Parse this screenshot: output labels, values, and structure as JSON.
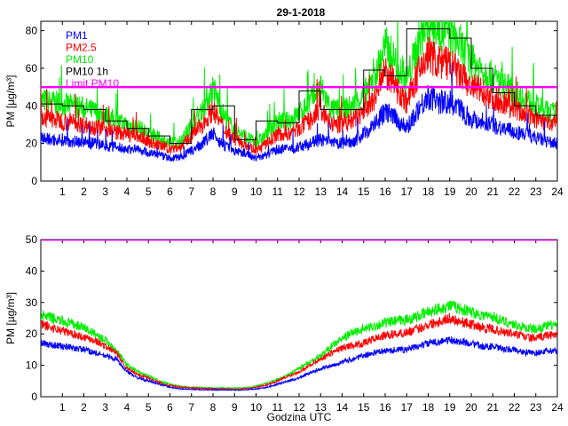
{
  "chart_data": [
    {
      "type": "line",
      "title": "29-1-2018",
      "ylabel": "PM [µg/m³]",
      "xlabel": "",
      "xlim": [
        0,
        24
      ],
      "ylim": [
        0,
        85
      ],
      "xticks": [
        "1",
        "2",
        "3",
        "4",
        "5",
        "6",
        "7",
        "8",
        "9",
        "10",
        "11",
        "12",
        "13",
        "14",
        "15",
        "16",
        "17",
        "18",
        "19",
        "20",
        "21",
        "22",
        "23",
        "24"
      ],
      "yticks": [
        "0",
        "20",
        "40",
        "60",
        "80"
      ],
      "legend_position": "top-left",
      "colors": {
        "PM1": "#0000ff",
        "PM2.5": "#ff0000",
        "PM10": "#00ee00",
        "PM10 1h": "#000000",
        "Limit PM10": "#ff00ff"
      },
      "series": [
        {
          "name": "PM1",
          "x": [
            0,
            0.5,
            1,
            1.5,
            2,
            2.5,
            3,
            3.5,
            4,
            4.5,
            5,
            5.5,
            6,
            6.5,
            7,
            7.5,
            8,
            8.5,
            9,
            9.5,
            10,
            10.5,
            11,
            11.5,
            12,
            12.5,
            13,
            13.5,
            14,
            14.5,
            15,
            15.5,
            16,
            16.5,
            17,
            17.5,
            18,
            18.5,
            19,
            19.5,
            20,
            20.5,
            21,
            21.5,
            22,
            22.5,
            23,
            23.5,
            24
          ],
          "y": [
            23,
            22,
            22,
            21,
            21,
            20,
            19,
            18,
            17,
            17,
            15,
            14,
            12,
            13,
            16,
            20,
            25,
            19,
            16,
            15,
            12,
            14,
            17,
            17,
            18,
            20,
            22,
            20,
            20,
            21,
            25,
            30,
            37,
            33,
            28,
            38,
            45,
            42,
            42,
            38,
            33,
            32,
            30,
            28,
            26,
            25,
            23,
            21,
            20
          ]
        },
        {
          "name": "PM2.5",
          "x": [
            0,
            0.5,
            1,
            1.5,
            2,
            2.5,
            3,
            3.5,
            4,
            4.5,
            5,
            5.5,
            6,
            6.5,
            7,
            7.5,
            8,
            8.5,
            9,
            9.5,
            10,
            10.5,
            11,
            11.5,
            12,
            12.5,
            13,
            13.5,
            14,
            14.5,
            15,
            15.5,
            16,
            16.5,
            17,
            17.5,
            18,
            18.5,
            19,
            19.5,
            20,
            20.5,
            21,
            21.5,
            22,
            22.5,
            23,
            23.5,
            24
          ],
          "y": [
            34,
            33,
            32,
            31,
            30,
            29,
            28,
            26,
            25,
            24,
            21,
            19,
            17,
            18,
            24,
            30,
            38,
            28,
            22,
            20,
            16,
            20,
            25,
            25,
            28,
            32,
            38,
            30,
            30,
            32,
            37,
            43,
            58,
            50,
            42,
            56,
            68,
            63,
            62,
            56,
            50,
            48,
            44,
            42,
            38,
            36,
            33,
            31,
            30
          ]
        },
        {
          "name": "PM10",
          "x": [
            0,
            0.5,
            1,
            1.5,
            2,
            2.5,
            3,
            3.5,
            4,
            4.5,
            5,
            5.5,
            6,
            6.5,
            7,
            7.5,
            8,
            8.5,
            9,
            9.5,
            10,
            10.5,
            11,
            11.5,
            12,
            12.5,
            13,
            13.5,
            14,
            14.5,
            15,
            15.5,
            16,
            16.5,
            17,
            17.5,
            18,
            18.5,
            19,
            19.5,
            20,
            20.5,
            21,
            21.5,
            22,
            22.5,
            23,
            23.5,
            24
          ],
          "y": [
            43,
            42,
            41,
            40,
            39,
            37,
            35,
            32,
            30,
            29,
            25,
            23,
            20,
            21,
            30,
            38,
            50,
            35,
            27,
            24,
            20,
            25,
            32,
            32,
            36,
            42,
            50,
            38,
            38,
            40,
            46,
            55,
            72,
            63,
            53,
            72,
            85,
            80,
            79,
            72,
            63,
            60,
            55,
            52,
            47,
            44,
            40,
            37,
            36
          ]
        },
        {
          "name": "PM10 1h",
          "x": [
            0,
            1,
            2,
            3,
            4,
            5,
            6,
            7,
            8,
            9,
            10,
            11,
            12,
            13,
            14,
            15,
            16,
            17,
            18,
            19,
            20,
            21,
            22,
            23,
            24
          ],
          "y": [
            41,
            40,
            38,
            32,
            28,
            24,
            20,
            38,
            40,
            22,
            32,
            31,
            48,
            38,
            38,
            59,
            56,
            81,
            81,
            76,
            60,
            47,
            40,
            35,
            35
          ]
        },
        {
          "name": "Limit PM10",
          "x": [
            0,
            24
          ],
          "y": [
            50,
            50
          ]
        }
      ]
    },
    {
      "type": "line",
      "title": "",
      "ylabel": "PM [µg/m³]",
      "xlabel": "Godzina UTC",
      "xlim": [
        0,
        24
      ],
      "ylim": [
        0,
        50
      ],
      "xticks": [
        "1",
        "2",
        "3",
        "4",
        "5",
        "6",
        "7",
        "8",
        "9",
        "10",
        "11",
        "12",
        "13",
        "14",
        "15",
        "16",
        "17",
        "18",
        "19",
        "20",
        "21",
        "22",
        "23",
        "24"
      ],
      "yticks": [
        "0",
        "10",
        "20",
        "30",
        "40",
        "50"
      ],
      "colors": {
        "PM1": "#0000ff",
        "PM2.5": "#ff0000",
        "PM10": "#00ee00",
        "Limit PM10": "#ff00ff"
      },
      "series": [
        {
          "name": "PM1",
          "x": [
            0,
            0.5,
            1,
            1.5,
            2,
            2.5,
            3,
            3.5,
            4,
            4.5,
            5,
            5.5,
            6,
            6.5,
            7,
            7.5,
            8,
            8.5,
            9,
            9.5,
            10,
            10.5,
            11,
            11.5,
            12,
            12.5,
            13,
            13.5,
            14,
            14.5,
            15,
            15.5,
            16,
            16.5,
            17,
            17.5,
            18,
            18.5,
            19,
            19.5,
            20,
            20.5,
            21,
            21.5,
            22,
            22.5,
            23,
            23.5,
            24
          ],
          "y": [
            17,
            16.5,
            16,
            15.5,
            15,
            14,
            13,
            12,
            8,
            6,
            5,
            4,
            3,
            2.5,
            2.3,
            2.2,
            2.2,
            2.2,
            2.1,
            2.2,
            2.5,
            3,
            4,
            5,
            6,
            7.5,
            9,
            10,
            11,
            12,
            13,
            14,
            14.5,
            15,
            15,
            16,
            17,
            17.5,
            18,
            17.5,
            17,
            16,
            16,
            15,
            15,
            14,
            14,
            14.5,
            14.5
          ]
        },
        {
          "name": "PM2.5",
          "x": [
            0,
            0.5,
            1,
            1.5,
            2,
            2.5,
            3,
            3.5,
            4,
            4.5,
            5,
            5.5,
            6,
            6.5,
            7,
            7.5,
            8,
            8.5,
            9,
            9.5,
            10,
            10.5,
            11,
            11.5,
            12,
            12.5,
            13,
            13.5,
            14,
            14.5,
            15,
            15.5,
            16,
            16.5,
            17,
            17.5,
            18,
            18.5,
            19,
            19.5,
            20,
            20.5,
            21,
            21.5,
            22,
            22.5,
            23,
            23.5,
            24
          ],
          "y": [
            23,
            22,
            21,
            20,
            19,
            18,
            16,
            14,
            9,
            7,
            6,
            4.5,
            3.5,
            3,
            2.8,
            2.6,
            2.5,
            2.5,
            2.4,
            2.6,
            3,
            3.8,
            5,
            6.5,
            8,
            10,
            12,
            14,
            15.5,
            16.5,
            17,
            18.5,
            19.5,
            20,
            20.5,
            21.5,
            23,
            24,
            25,
            24,
            23,
            22,
            21.5,
            20.5,
            20,
            19,
            18.5,
            19.5,
            20
          ]
        },
        {
          "name": "PM10",
          "x": [
            0,
            0.5,
            1,
            1.5,
            2,
            2.5,
            3,
            3.5,
            4,
            4.5,
            5,
            5.5,
            6,
            6.5,
            7,
            7.5,
            8,
            8.5,
            9,
            9.5,
            10,
            10.5,
            11,
            11.5,
            12,
            12.5,
            13,
            13.5,
            14,
            14.5,
            15,
            15.5,
            16,
            16.5,
            17,
            17.5,
            18,
            18.5,
            19,
            19.5,
            20,
            20.5,
            21,
            21.5,
            22,
            22.5,
            23,
            23.5,
            24
          ],
          "y": [
            26,
            25,
            24,
            23,
            22,
            20,
            18,
            15,
            10,
            8,
            6.5,
            5,
            4,
            3.3,
            3,
            2.9,
            2.8,
            2.8,
            2.7,
            2.9,
            3.3,
            4.3,
            5.5,
            7,
            9,
            11,
            13,
            16,
            18.5,
            20.5,
            21.5,
            22.5,
            23.5,
            24,
            24.5,
            25.5,
            27,
            28,
            29,
            28,
            27,
            26,
            25.5,
            24,
            23,
            22,
            21.5,
            22.5,
            23
          ]
        },
        {
          "name": "Limit PM10",
          "x": [
            0,
            24
          ],
          "y": [
            50,
            50
          ]
        }
      ]
    }
  ]
}
